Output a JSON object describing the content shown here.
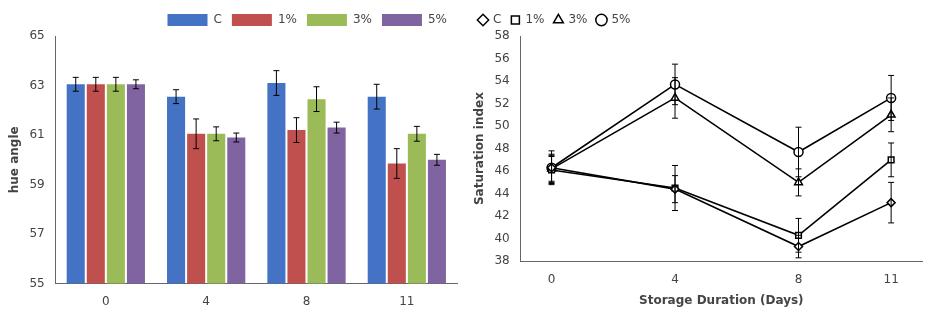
{
  "chart_data": [
    {
      "type": "bar",
      "categories": [
        "0",
        "4",
        "8",
        "11"
      ],
      "ylabel": "hue angle",
      "ylim": [
        55,
        65
      ],
      "yticks": [
        55,
        57,
        59,
        61,
        63,
        65
      ],
      "grid": false,
      "legend": "upper right",
      "series": [
        {
          "name": "C",
          "color": "#4472C4",
          "values": [
            63.05,
            62.55,
            63.1,
            62.55
          ],
          "errors": [
            0.28,
            0.28,
            0.5,
            0.5
          ]
        },
        {
          "name": "1%",
          "color": "#C0504D",
          "values": [
            63.05,
            61.05,
            61.2,
            59.85
          ],
          "errors": [
            0.28,
            0.6,
            0.5,
            0.6
          ]
        },
        {
          "name": "3%",
          "color": "#9BBB59",
          "values": [
            63.05,
            61.05,
            62.45,
            61.05
          ],
          "errors": [
            0.28,
            0.28,
            0.5,
            0.3
          ]
        },
        {
          "name": "5%",
          "color": "#8064A2",
          "values": [
            63.05,
            60.9,
            61.3,
            60.0
          ],
          "errors": [
            0.18,
            0.18,
            0.22,
            0.22
          ]
        }
      ]
    },
    {
      "type": "line",
      "x": [
        0,
        4,
        8,
        11
      ],
      "xlabel": "Storage Duration (Days)",
      "ylabel": "Saturation index",
      "xlim": [
        -1,
        12
      ],
      "xticks": [
        0,
        4,
        8,
        11
      ],
      "ylim": [
        38,
        58
      ],
      "yticks": [
        38,
        40,
        42,
        44,
        46,
        48,
        50,
        52,
        54,
        56,
        58
      ],
      "grid": false,
      "legend": "upper left",
      "series": [
        {
          "name": "C",
          "color": "#000000",
          "marker": "diamond",
          "values": [
            46.3,
            44.4,
            39.3,
            43.2
          ],
          "errors": [
            1.5,
            1.2,
            1.0,
            1.8
          ]
        },
        {
          "name": "1%",
          "color": "#000000",
          "marker": "square",
          "values": [
            46.1,
            44.5,
            40.3,
            47.0
          ],
          "errors": [
            1.2,
            2.0,
            1.5,
            1.5
          ]
        },
        {
          "name": "3%",
          "color": "#000000",
          "marker": "triangle",
          "values": [
            46.2,
            52.5,
            45.0,
            51.0
          ],
          "errors": [
            1.2,
            1.8,
            1.2,
            1.5
          ]
        },
        {
          "name": "5%",
          "color": "#000000",
          "marker": "circle",
          "values": [
            46.3,
            53.7,
            47.7,
            52.5
          ],
          "errors": [
            1.2,
            1.8,
            2.2,
            2.0
          ]
        }
      ]
    }
  ]
}
